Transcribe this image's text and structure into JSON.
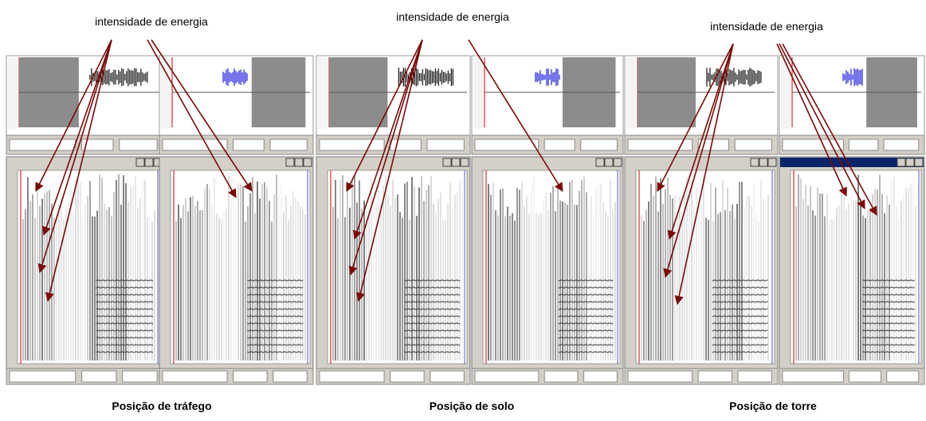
{
  "panels": [
    {
      "annotation": "intensidade de energia",
      "caption": "Posição de tráfego"
    },
    {
      "annotation": "intensidade de energia",
      "caption": "Posição de solo"
    },
    {
      "annotation": "intensidade de energia",
      "caption": "Posição de torre"
    }
  ]
}
